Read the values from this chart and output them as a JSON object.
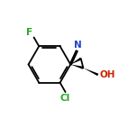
{
  "background_color": "#ffffff",
  "bond_color": "#000000",
  "label_color_F": "#22aa22",
  "label_color_Cl": "#22aa22",
  "label_color_N": "#2244cc",
  "label_color_OH": "#cc2200",
  "figsize": [
    1.52,
    1.52
  ],
  "dpi": 100,
  "xlim": [
    0,
    10
  ],
  "ylim": [
    0,
    10
  ]
}
